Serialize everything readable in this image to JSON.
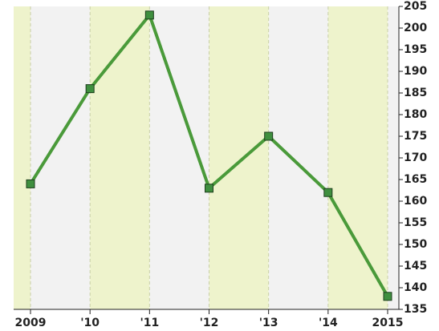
{
  "chart_data": {
    "type": "line",
    "categories": [
      "2009",
      "'10",
      "'11",
      "'12",
      "'13",
      "'14",
      "2015"
    ],
    "values": [
      164,
      186,
      203,
      163,
      175,
      162,
      138
    ],
    "color": "#4a9a3a",
    "ylim": [
      135,
      205
    ],
    "yticks": [
      135,
      140,
      145,
      150,
      155,
      160,
      165,
      170,
      175,
      180,
      185,
      190,
      195,
      200,
      205
    ],
    "grid": true
  }
}
